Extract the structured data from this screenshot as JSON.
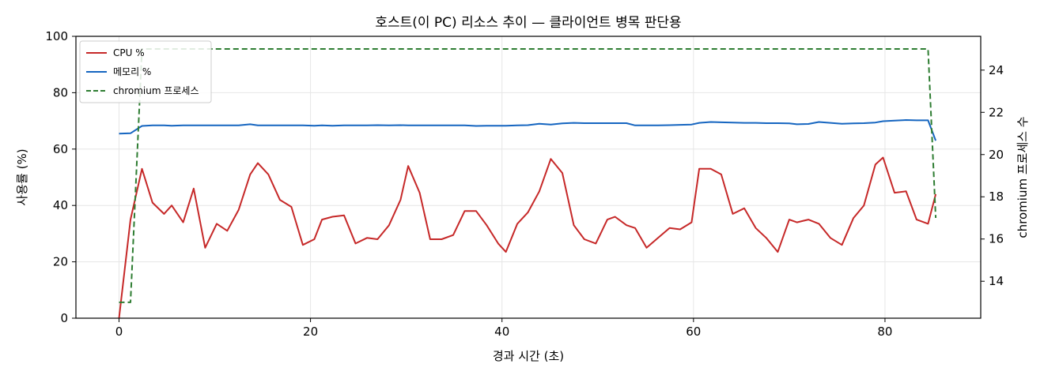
{
  "chart_data": {
    "type": "line",
    "title": "호스트(이 PC) 리소스 추이 — 클라이언트 병목 판단용",
    "xlabel": "경과 시간 (초)",
    "ylabel": "사용률 (%)",
    "y2label": "chromium 프로세스 수",
    "xlim": [
      -4.5,
      90
    ],
    "ylim": [
      0,
      100
    ],
    "y2lim": [
      12.25,
      25.6
    ],
    "xticks": [
      0,
      20,
      40,
      60,
      80
    ],
    "yticks": [
      0,
      20,
      40,
      60,
      80,
      100
    ],
    "y2ticks": [
      14,
      16,
      18,
      20,
      22,
      24
    ],
    "grid": true,
    "legend_position": "top-left",
    "series": [
      {
        "name": "CPU %",
        "axis": "left",
        "color": "#c62828",
        "dash": "solid",
        "x": [
          0,
          1.2,
          2.4,
          3.5,
          4.7,
          5.5,
          6.7,
          7.8,
          9,
          10.2,
          11.3,
          12.5,
          13.7,
          14.5,
          15.6,
          16.8,
          18,
          19.2,
          20.4,
          21.2,
          22.3,
          23.5,
          24.7,
          25.9,
          27,
          28.2,
          29.4,
          30.2,
          31.4,
          32.5,
          33.7,
          34.9,
          36.1,
          37.3,
          38.4,
          39.6,
          40.4,
          41.6,
          42.7,
          43.9,
          45.1,
          46.3,
          47.5,
          48.6,
          49.8,
          51,
          51.8,
          53,
          53.9,
          55.1,
          56.3,
          57.5,
          58.6,
          59.8,
          60.6,
          61.8,
          62.9,
          64.1,
          65.3,
          66.5,
          67.6,
          68.8,
          70,
          70.8,
          72,
          73.1,
          74.3,
          75.5,
          76.7,
          77.8,
          79,
          79.8,
          81,
          82.2,
          83.3,
          84.5,
          85.3
        ],
        "values": [
          0,
          35,
          53,
          41,
          37,
          40,
          34,
          46,
          25,
          33.5,
          31,
          38.5,
          51,
          55,
          51,
          42,
          39.5,
          26,
          28,
          35,
          36,
          36.5,
          26.5,
          28.5,
          28,
          33,
          42,
          54,
          44.5,
          28,
          28,
          29.5,
          38,
          38,
          33,
          26.5,
          23.5,
          33.5,
          37.5,
          45,
          56.5,
          51.5,
          33,
          28,
          26.5,
          35,
          36,
          33,
          32,
          25,
          28.5,
          32,
          31.5,
          34,
          53,
          53,
          51,
          37,
          39,
          32,
          28.5,
          23.5,
          35,
          34,
          35,
          33.5,
          28.5,
          26,
          35.5,
          40,
          54.5,
          57,
          44.5,
          45,
          35,
          33.5,
          44
        ]
      },
      {
        "name": "메모리 %",
        "axis": "left",
        "color": "#1565c0",
        "dash": "solid",
        "x": [
          0,
          1.2,
          2.4,
          3.5,
          4.7,
          5.5,
          6.7,
          7.8,
          9,
          10.2,
          11.3,
          12.5,
          13.7,
          14.5,
          15.6,
          16.8,
          18,
          19.2,
          20.4,
          21.2,
          22.3,
          23.5,
          24.7,
          25.9,
          27,
          28.2,
          29.4,
          30.2,
          31.4,
          32.5,
          33.7,
          34.9,
          36.1,
          37.3,
          38.4,
          39.6,
          40.4,
          41.6,
          42.7,
          43.9,
          45.1,
          46.3,
          47.5,
          48.6,
          49.8,
          51,
          51.8,
          53,
          53.9,
          55.1,
          56.3,
          57.5,
          58.6,
          59.8,
          60.6,
          61.8,
          62.9,
          64.1,
          65.3,
          66.5,
          67.6,
          68.8,
          70,
          70.8,
          72,
          73.1,
          74.3,
          75.5,
          76.7,
          77.8,
          79,
          79.8,
          81,
          82.2,
          83.3,
          84.5,
          85.3
        ],
        "values": [
          65.5,
          65.6,
          68.2,
          68.4,
          68.4,
          68.3,
          68.4,
          68.4,
          68.4,
          68.4,
          68.4,
          68.4,
          68.8,
          68.4,
          68.4,
          68.4,
          68.4,
          68.4,
          68.3,
          68.4,
          68.3,
          68.4,
          68.4,
          68.4,
          68.5,
          68.4,
          68.5,
          68.4,
          68.4,
          68.4,
          68.4,
          68.4,
          68.4,
          68.2,
          68.3,
          68.3,
          68.3,
          68.4,
          68.5,
          69,
          68.7,
          69.1,
          69.3,
          69.2,
          69.2,
          69.2,
          69.2,
          69.2,
          68.4,
          68.4,
          68.4,
          68.5,
          68.6,
          68.7,
          69.3,
          69.6,
          69.5,
          69.4,
          69.3,
          69.3,
          69.2,
          69.2,
          69.1,
          68.8,
          68.9,
          69.6,
          69.3,
          69,
          69.1,
          69.2,
          69.4,
          69.9,
          70.1,
          70.3,
          70.2,
          70.2,
          63
        ]
      },
      {
        "name": "chromium 프로세스",
        "axis": "right",
        "color": "#2e7d32",
        "dash": "dashed",
        "x": [
          0,
          1.2,
          2.4,
          84.5,
          85.3
        ],
        "values": [
          13,
          13,
          25,
          25,
          17
        ]
      }
    ]
  }
}
